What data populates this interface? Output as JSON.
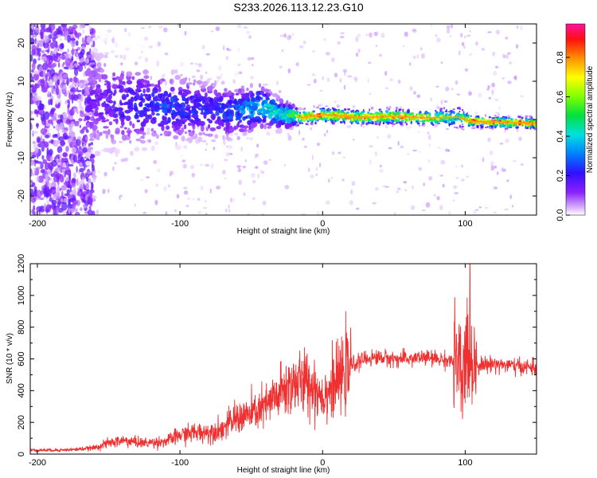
{
  "title": "S233.2026.113.12.23.G10",
  "chart_data": [
    {
      "type": "heatmap",
      "xlabel": "Height of straight line (km)",
      "ylabel": "Frequency (Hz)",
      "xlim": [
        -205,
        150
      ],
      "ylim": [
        -25,
        25
      ],
      "x_ticks": [
        -200,
        -100,
        0,
        100
      ],
      "y_ticks": [
        -20,
        -10,
        0,
        10,
        20
      ],
      "colorbar": {
        "label": "Normalized spectral amplitude",
        "range": [
          0,
          0.97
        ],
        "ticks": [
          0.0,
          0.2,
          0.4,
          0.6,
          0.8
        ],
        "colormap": "rainbow (violet to magenta)"
      },
      "ridge": [
        {
          "x": -160,
          "f": 4.5,
          "width": 14,
          "amp": 0.15
        },
        {
          "x": -140,
          "f": 4.0,
          "width": 12,
          "amp": 0.2
        },
        {
          "x": -120,
          "f": 3.5,
          "width": 10,
          "amp": 0.25
        },
        {
          "x": -100,
          "f": 3.0,
          "width": 9,
          "amp": 0.25
        },
        {
          "x": -80,
          "f": 2.5,
          "width": 8,
          "amp": 0.22
        },
        {
          "x": -60,
          "f": 2.0,
          "width": 7,
          "amp": 0.3
        },
        {
          "x": -45,
          "f": 3.5,
          "width": 6,
          "amp": 0.4
        },
        {
          "x": -30,
          "f": 1.5,
          "width": 4,
          "amp": 0.45
        },
        {
          "x": -15,
          "f": 0.5,
          "width": 2,
          "amp": 0.7
        },
        {
          "x": 0,
          "f": 1.2,
          "width": 2,
          "amp": 0.85
        },
        {
          "x": 25,
          "f": 0.6,
          "width": 2,
          "amp": 0.8
        },
        {
          "x": 50,
          "f": 0.8,
          "width": 2,
          "amp": 0.8
        },
        {
          "x": 75,
          "f": 0.4,
          "width": 2,
          "amp": 0.75
        },
        {
          "x": 95,
          "f": 0.6,
          "width": 3,
          "amp": 0.45
        },
        {
          "x": 105,
          "f": -0.5,
          "width": 1.5,
          "amp": 0.9
        },
        {
          "x": 150,
          "f": -1.0,
          "width": 1.5,
          "amp": 0.9
        }
      ]
    },
    {
      "type": "line",
      "xlabel": "Height of straight line (km)",
      "ylabel": "SNR (10 * v/v)",
      "xlim": [
        -205,
        150
      ],
      "ylim": [
        0,
        1200
      ],
      "x_ticks": [
        -200,
        -100,
        0,
        100
      ],
      "y_ticks": [
        0,
        200,
        400,
        600,
        800,
        1000,
        1200
      ],
      "color": "#f03030",
      "series": [
        {
          "x": [
            -205,
            -190,
            -175,
            -160,
            -150,
            -140,
            -125,
            -110,
            -100,
            -90,
            -80,
            -70,
            -60,
            -50,
            -40,
            -30,
            -20,
            -10,
            0,
            10,
            20,
            30,
            40,
            50,
            60,
            70,
            80,
            90,
            95,
            98,
            100,
            102,
            105,
            110,
            120,
            130,
            140,
            150
          ],
          "values": [
            25,
            25,
            28,
            40,
            70,
            85,
            70,
            80,
            120,
            135,
            140,
            160,
            230,
            250,
            300,
            380,
            450,
            450,
            370,
            450,
            560,
            600,
            610,
            600,
            600,
            610,
            600,
            590,
            560,
            420,
            600,
            700,
            600,
            560,
            570,
            560,
            550,
            545
          ]
        }
      ]
    }
  ]
}
